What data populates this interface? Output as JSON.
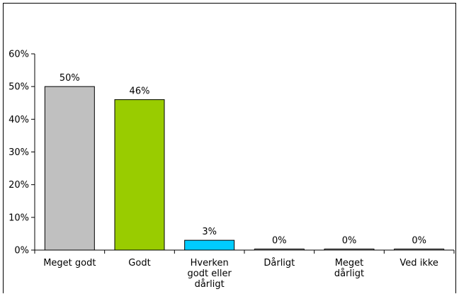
{
  "chart_data": {
    "type": "bar",
    "title": "",
    "xlabel": "",
    "ylabel": "",
    "ylim": [
      0,
      60
    ],
    "yticks": [
      0,
      10,
      20,
      30,
      40,
      50,
      60
    ],
    "ytick_labels": [
      "0%",
      "10%",
      "20%",
      "30%",
      "40%",
      "50%",
      "60%"
    ],
    "grid": false,
    "legend": "none",
    "categories": [
      [
        "Meget godt"
      ],
      [
        "Godt"
      ],
      [
        "Hverken",
        "godt eller",
        "dårligt"
      ],
      [
        "Dårligt"
      ],
      [
        "Meget",
        "dårligt"
      ],
      [
        "Ved ikke"
      ]
    ],
    "values": [
      50,
      46,
      3,
      0,
      0,
      0
    ],
    "value_labels": [
      "50%",
      "46%",
      "3%",
      "0%",
      "0%",
      "0%"
    ],
    "colors": [
      "#c0c0c0",
      "#99cc00",
      "#00ccff",
      "#c0c0c0",
      "#c0c0c0",
      "#c0c0c0"
    ]
  }
}
